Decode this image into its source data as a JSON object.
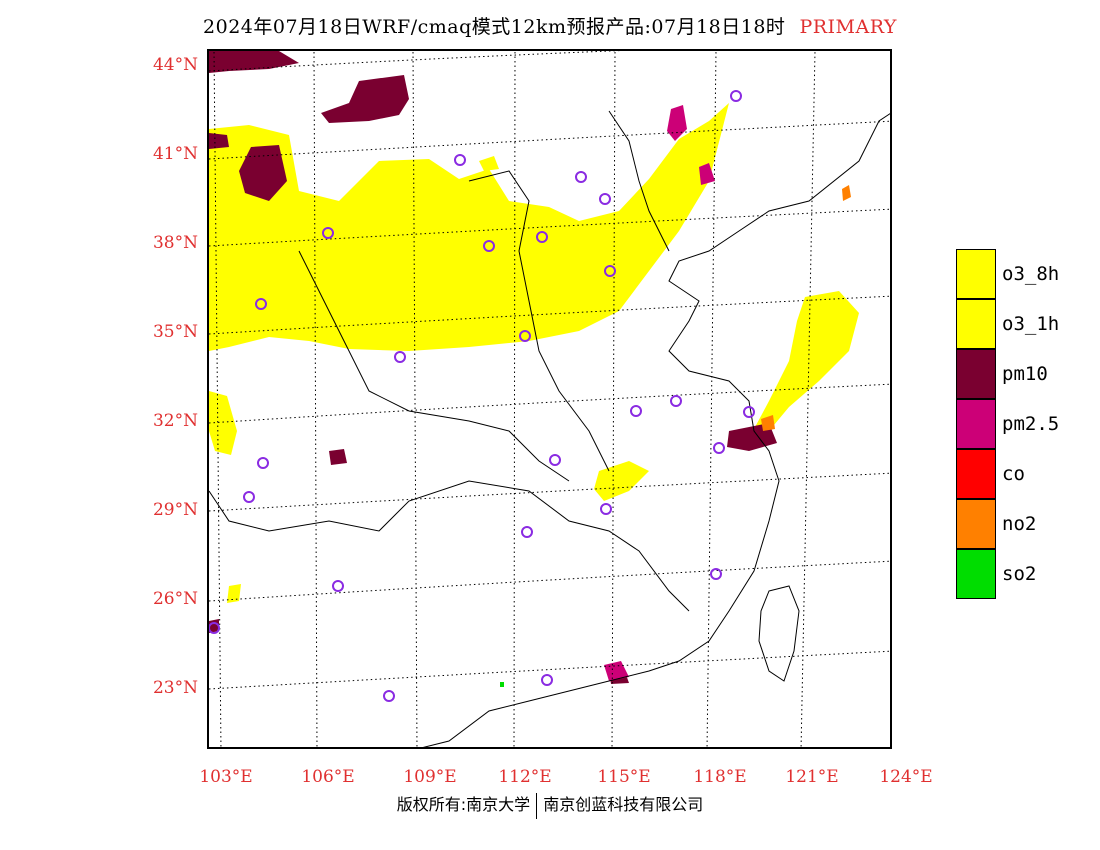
{
  "header": {
    "title": "2024年07月18日WRF/cmaq模式12km预报产品:07月18日18时",
    "tag": "PRIMARY"
  },
  "axes": {
    "lat_labels": [
      "44°N",
      "41°N",
      "38°N",
      "35°N",
      "32°N",
      "29°N",
      "26°N",
      "23°N"
    ],
    "lon_labels": [
      "103°E",
      "106°E",
      "109°E",
      "112°E",
      "115°E",
      "118°E",
      "121°E",
      "124°E"
    ]
  },
  "legend": {
    "items": [
      {
        "label": "o3_8h",
        "color": "#ffff00"
      },
      {
        "label": "o3_1h",
        "color": "#ffff00"
      },
      {
        "label": "pm10",
        "color": "#7a0030"
      },
      {
        "label": "pm2.5",
        "color": "#cc0077"
      },
      {
        "label": "co",
        "color": "#ff0000"
      },
      {
        "label": "no2",
        "color": "#ff8000"
      },
      {
        "label": "so2",
        "color": "#00dd00"
      }
    ]
  },
  "footer": {
    "copyright": "版权所有:南京大学",
    "company": "南京创蓝科技有限公司"
  },
  "colors": {
    "accent": "#e03030",
    "o3": "#ffff00",
    "pm10": "#7a0030",
    "pm25": "#cc0077",
    "no2": "#ff8000",
    "so2": "#00dd00",
    "station": "#8a2be2"
  }
}
